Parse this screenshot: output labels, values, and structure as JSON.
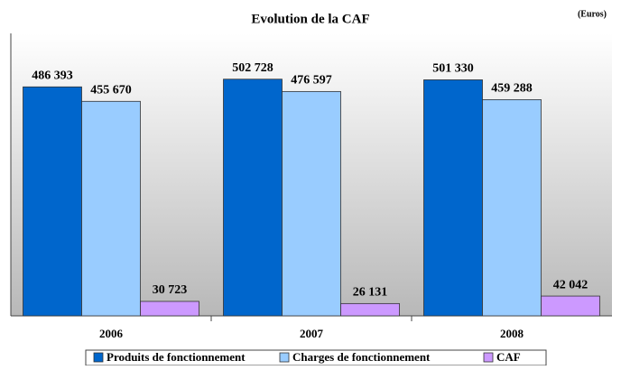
{
  "chart_data": {
    "type": "bar",
    "title": "Evolution de la CAF",
    "subtitle": "(Euros)",
    "categories": [
      "2006",
      "2007",
      "2008"
    ],
    "series": [
      {
        "name": "Produits de fonctionnement",
        "color": "#0066cc",
        "values": [
          486393,
          502728,
          501330
        ],
        "value_labels": [
          "486 393",
          "502 728",
          "501 330"
        ]
      },
      {
        "name": "Charges de fonctionnement",
        "color": "#99ccff",
        "values": [
          455670,
          476597,
          459288
        ],
        "value_labels": [
          "455 670",
          "476 597",
          "459 288"
        ]
      },
      {
        "name": "CAF",
        "color": "#cc99ff",
        "values": [
          30723,
          26131,
          42042
        ],
        "value_labels": [
          "30 723",
          "26 131",
          "42 042"
        ]
      }
    ],
    "ylim": [
      0,
      600000
    ],
    "legend": "bottom"
  }
}
